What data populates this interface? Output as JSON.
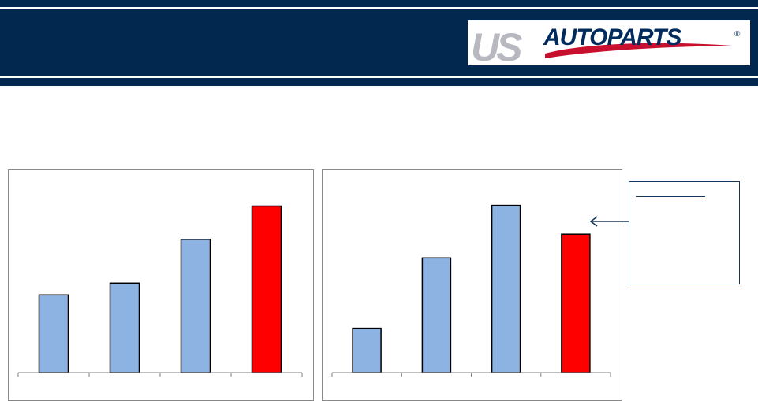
{
  "header": {
    "logo_text_us": "US",
    "logo_text_autoparts": "AUTOPARTS",
    "logo_registered": "®",
    "colors": {
      "band": "#02284f",
      "logo_us": "#b8b8c0",
      "logo_autoparts": "#002b5c",
      "logo_swoosh": "#c8102e"
    }
  },
  "note": {
    "text": ""
  },
  "chart_data": [
    {
      "type": "bar",
      "categories": [
        "",
        "",
        "",
        ""
      ],
      "values": [
        105,
        121,
        180,
        225
      ],
      "ylim": [
        0,
        250
      ],
      "bar_colors": [
        "#8db3e2",
        "#8db3e2",
        "#8db3e2",
        "#ff0000"
      ],
      "grid": false
    },
    {
      "type": "bar",
      "categories": [
        "",
        "",
        "",
        ""
      ],
      "values": [
        60,
        155,
        226,
        187
      ],
      "ylim": [
        0,
        250
      ],
      "bar_colors": [
        "#8db3e2",
        "#8db3e2",
        "#8db3e2",
        "#ff0000"
      ],
      "grid": false
    }
  ]
}
